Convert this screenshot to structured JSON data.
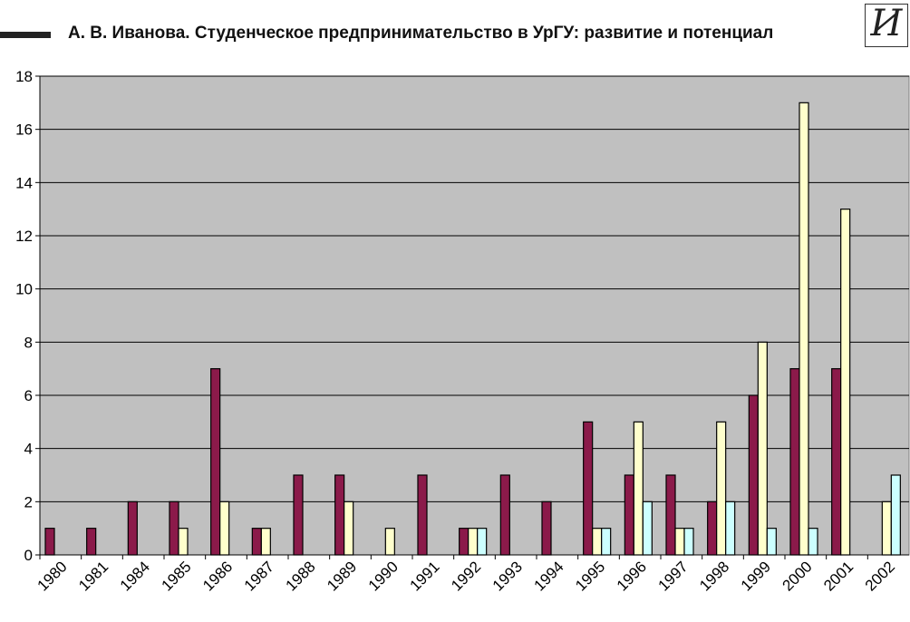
{
  "header": {
    "title": "А. В. Иванова. Студенческое предпринимательство в УрГУ: развитие и потенциал",
    "logo_text": "И"
  },
  "chart_data": {
    "type": "bar",
    "categories": [
      "1980",
      "1981",
      "1984",
      "1985",
      "1986",
      "1987",
      "1988",
      "1989",
      "1990",
      "1991",
      "1992",
      "1993",
      "1994",
      "1995",
      "1996",
      "1997",
      "1998",
      "1999",
      "2000",
      "2001",
      "2002"
    ],
    "series": [
      {
        "color": "#8b1a4a",
        "values": [
          1,
          1,
          2,
          2,
          7,
          1,
          3,
          3,
          0,
          3,
          1,
          3,
          2,
          5,
          3,
          3,
          2,
          6,
          7,
          7,
          0
        ]
      },
      {
        "color": "#ffffcc",
        "values": [
          0,
          0,
          0,
          1,
          2,
          1,
          0,
          2,
          1,
          0,
          1,
          0,
          0,
          1,
          5,
          1,
          5,
          8,
          17,
          13,
          2
        ]
      },
      {
        "color": "#ccffff",
        "values": [
          0,
          0,
          0,
          0,
          0,
          0,
          0,
          0,
          0,
          0,
          1,
          0,
          0,
          1,
          2,
          1,
          2,
          1,
          1,
          0,
          3
        ]
      }
    ],
    "ylim": [
      0,
      18
    ],
    "yticks": [
      0,
      2,
      4,
      6,
      8,
      10,
      12,
      14,
      16,
      18
    ],
    "grid": true,
    "plot_background": "#c0c0c0"
  }
}
